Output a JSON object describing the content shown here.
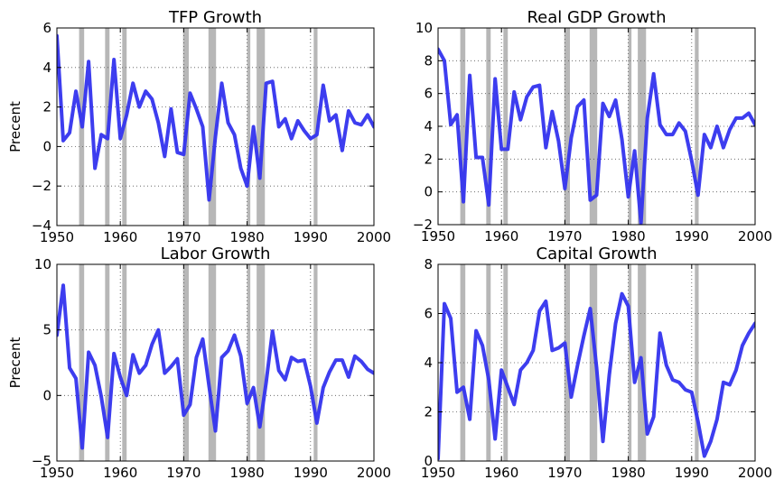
{
  "series_color": "#3333ee",
  "recession_color": "#999999",
  "recessions": [
    [
      1953.5,
      1954.3
    ],
    [
      1957.6,
      1958.3
    ],
    [
      1960.3,
      1961.0
    ],
    [
      1969.9,
      1970.8
    ],
    [
      1973.9,
      1975.1
    ],
    [
      1980.0,
      1980.5
    ],
    [
      1981.5,
      1982.8
    ],
    [
      1990.5,
      1991.1
    ]
  ],
  "chart_data": [
    {
      "type": "line",
      "title": "TFP Growth",
      "ylabel": "Precent",
      "xlim": [
        1950,
        2000
      ],
      "ylim": [
        -4,
        6
      ],
      "xticks": [
        1950,
        1960,
        1970,
        1980,
        1990,
        2000
      ],
      "yticks": [
        -4,
        -2,
        0,
        2,
        4,
        6
      ],
      "x": [
        1950,
        1951,
        1952,
        1953,
        1954,
        1955,
        1956,
        1957,
        1958,
        1959,
        1960,
        1961,
        1962,
        1963,
        1964,
        1965,
        1966,
        1967,
        1968,
        1969,
        1970,
        1971,
        1972,
        1973,
        1974,
        1975,
        1976,
        1977,
        1978,
        1979,
        1980,
        1981,
        1982,
        1983,
        1984,
        1985,
        1986,
        1987,
        1988,
        1989,
        1990,
        1991,
        1992,
        1993,
        1994,
        1995,
        1996,
        1997,
        1998,
        1999,
        2000
      ],
      "values": [
        5.6,
        0.3,
        0.7,
        2.8,
        1.0,
        4.3,
        -1.1,
        0.6,
        0.4,
        4.4,
        0.4,
        1.6,
        3.2,
        2.0,
        2.8,
        2.4,
        1.2,
        -0.5,
        1.9,
        -0.3,
        -0.4,
        2.7,
        1.9,
        1.0,
        -2.7,
        0.5,
        3.2,
        1.2,
        0.6,
        -1.1,
        -2.0,
        1.0,
        -1.6,
        3.2,
        3.3,
        1.0,
        1.4,
        0.4,
        1.3,
        0.8,
        0.4,
        0.6,
        3.1,
        1.3,
        1.6,
        -0.2,
        1.8,
        1.2,
        1.1,
        1.6,
        1.0
      ]
    },
    {
      "type": "line",
      "title": "Real GDP Growth",
      "ylabel": "",
      "xlim": [
        1950,
        2000
      ],
      "ylim": [
        -2,
        10
      ],
      "xticks": [
        1950,
        1960,
        1970,
        1980,
        1990,
        2000
      ],
      "yticks": [
        -2,
        0,
        2,
        4,
        6,
        8,
        10
      ],
      "x": [
        1950,
        1951,
        1952,
        1953,
        1954,
        1955,
        1956,
        1957,
        1958,
        1959,
        1960,
        1961,
        1962,
        1963,
        1964,
        1965,
        1966,
        1967,
        1968,
        1969,
        1970,
        1971,
        1972,
        1973,
        1974,
        1975,
        1976,
        1977,
        1978,
        1979,
        1980,
        1981,
        1982,
        1983,
        1984,
        1985,
        1986,
        1987,
        1988,
        1989,
        1990,
        1991,
        1992,
        1993,
        1994,
        1995,
        1996,
        1997,
        1998,
        1999,
        2000
      ],
      "values": [
        8.7,
        8.0,
        4.1,
        4.7,
        -0.6,
        7.1,
        2.1,
        2.1,
        -0.8,
        6.9,
        2.6,
        2.6,
        6.1,
        4.4,
        5.8,
        6.4,
        6.5,
        2.7,
        4.9,
        3.1,
        0.2,
        3.3,
        5.2,
        5.6,
        -0.5,
        -0.2,
        5.4,
        4.6,
        5.6,
        3.2,
        -0.3,
        2.5,
        -1.9,
        4.5,
        7.2,
        4.1,
        3.5,
        3.5,
        4.2,
        3.7,
        1.9,
        -0.2,
        3.5,
        2.7,
        4.0,
        2.7,
        3.8,
        4.5,
        4.5,
        4.8,
        4.1
      ]
    },
    {
      "type": "line",
      "title": "Labor Growth",
      "ylabel": "Precent",
      "xlim": [
        1950,
        2000
      ],
      "ylim": [
        -5,
        10
      ],
      "xticks": [
        1950,
        1960,
        1970,
        1980,
        1990,
        2000
      ],
      "yticks": [
        -5,
        0,
        5,
        10
      ],
      "x": [
        1950,
        1951,
        1952,
        1953,
        1954,
        1955,
        1956,
        1957,
        1958,
        1959,
        1960,
        1961,
        1962,
        1963,
        1964,
        1965,
        1966,
        1967,
        1968,
        1969,
        1970,
        1971,
        1972,
        1973,
        1974,
        1975,
        1976,
        1977,
        1978,
        1979,
        1980,
        1981,
        1982,
        1983,
        1984,
        1985,
        1986,
        1987,
        1988,
        1989,
        1990,
        1991,
        1992,
        1993,
        1994,
        1995,
        1996,
        1997,
        1998,
        1999,
        2000
      ],
      "values": [
        4.6,
        8.4,
        2.1,
        1.3,
        -4.0,
        3.3,
        2.3,
        -0.1,
        -3.2,
        3.2,
        1.4,
        0.0,
        3.1,
        1.7,
        2.3,
        3.9,
        5.0,
        1.7,
        2.2,
        2.8,
        -1.5,
        -0.7,
        2.9,
        4.3,
        0.7,
        -2.7,
        2.9,
        3.4,
        4.6,
        3.0,
        -0.6,
        0.6,
        -2.4,
        1.0,
        4.9,
        1.9,
        1.2,
        2.9,
        2.6,
        2.7,
        0.7,
        -2.1,
        0.6,
        1.8,
        2.7,
        2.7,
        1.4,
        3.0,
        2.6,
        2.0,
        1.7
      ]
    },
    {
      "type": "line",
      "title": "Capital Growth",
      "ylabel": "",
      "xlim": [
        1950,
        2000
      ],
      "ylim": [
        0,
        8
      ],
      "xticks": [
        1950,
        1960,
        1970,
        1980,
        1990,
        2000
      ],
      "yticks": [
        0,
        2,
        4,
        6,
        8
      ],
      "x": [
        1950,
        1951,
        1952,
        1953,
        1954,
        1955,
        1956,
        1957,
        1958,
        1959,
        1960,
        1961,
        1962,
        1963,
        1964,
        1965,
        1966,
        1967,
        1968,
        1969,
        1970,
        1971,
        1972,
        1973,
        1974,
        1975,
        1976,
        1977,
        1978,
        1979,
        1980,
        1981,
        1982,
        1983,
        1984,
        1985,
        1986,
        1987,
        1988,
        1989,
        1990,
        1991,
        1992,
        1993,
        1994,
        1995,
        1996,
        1997,
        1998,
        1999,
        2000
      ],
      "values": [
        0.1,
        6.4,
        5.8,
        2.8,
        3.0,
        1.7,
        5.3,
        4.7,
        3.3,
        0.9,
        3.7,
        3.0,
        2.3,
        3.7,
        4.0,
        4.5,
        6.1,
        6.5,
        4.5,
        4.6,
        4.8,
        2.6,
        3.9,
        5.1,
        6.2,
        3.8,
        0.8,
        3.5,
        5.6,
        6.8,
        6.3,
        3.2,
        4.2,
        1.1,
        1.8,
        5.2,
        3.9,
        3.3,
        3.2,
        2.9,
        2.8,
        1.6,
        0.2,
        0.8,
        1.7,
        3.2,
        3.1,
        3.7,
        4.7,
        5.2,
        5.6
      ]
    }
  ]
}
